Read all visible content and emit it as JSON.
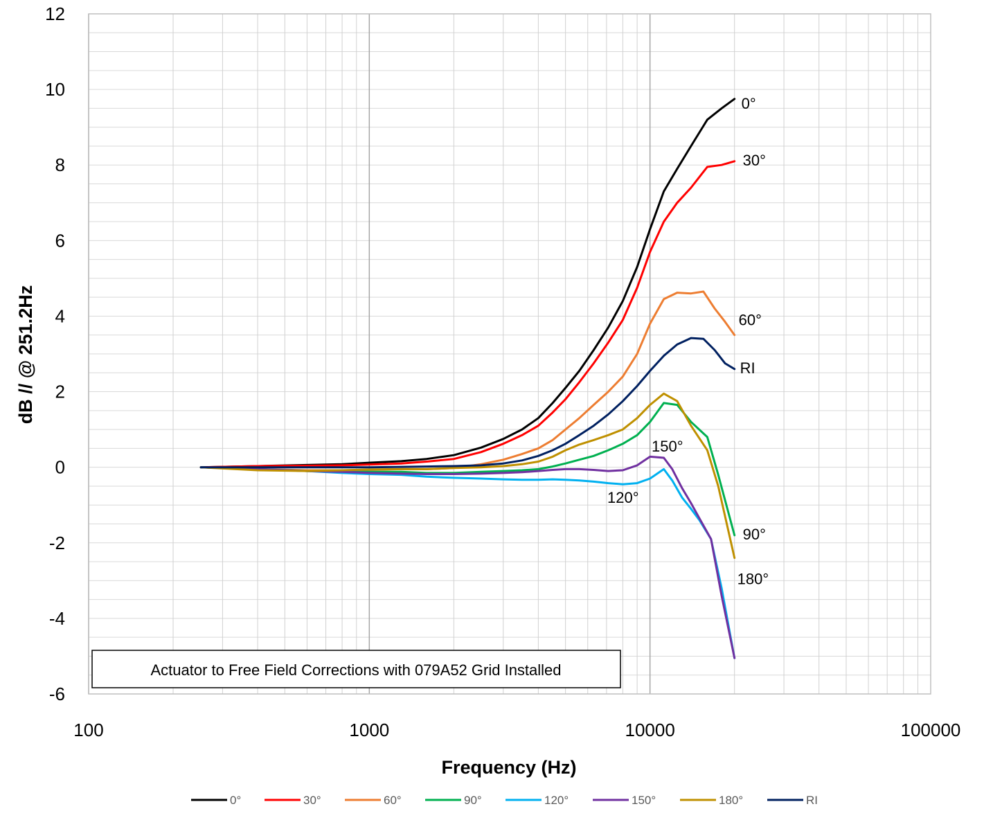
{
  "chart_data": {
    "type": "line",
    "title": "",
    "annotation": "Actuator to Free Field Corrections with 079A52 Grid Installed",
    "xlabel": "Frequency (Hz)",
    "ylabel": "dB // @ 251.2Hz",
    "xscale": "log",
    "xlim": [
      100,
      100000
    ],
    "ylim": [
      -6,
      12
    ],
    "xticks": [
      "100",
      "1000",
      "10000",
      "100000"
    ],
    "yticks": [
      "-6",
      "-4",
      "-2",
      "0",
      "2",
      "4",
      "6",
      "8",
      "10",
      "12"
    ],
    "grid": true,
    "legend_position": "bottom",
    "series": [
      {
        "name": "0°",
        "color": "#000000",
        "end_label": "0°",
        "points": [
          [
            251.2,
            0
          ],
          [
            400,
            0.03
          ],
          [
            600,
            0.06
          ],
          [
            800,
            0.08
          ],
          [
            1000,
            0.12
          ],
          [
            1300,
            0.16
          ],
          [
            1600,
            0.22
          ],
          [
            2000,
            0.32
          ],
          [
            2500,
            0.52
          ],
          [
            3000,
            0.75
          ],
          [
            3500,
            1.0
          ],
          [
            4000,
            1.3
          ],
          [
            4500,
            1.7
          ],
          [
            5000,
            2.1
          ],
          [
            5600,
            2.55
          ],
          [
            6300,
            3.1
          ],
          [
            7100,
            3.7
          ],
          [
            8000,
            4.4
          ],
          [
            9000,
            5.3
          ],
          [
            10000,
            6.3
          ],
          [
            11200,
            7.3
          ],
          [
            12500,
            7.9
          ],
          [
            14000,
            8.5
          ],
          [
            16000,
            9.2
          ],
          [
            18000,
            9.5
          ],
          [
            20000,
            9.75
          ]
        ]
      },
      {
        "name": "30°",
        "color": "#ff0000",
        "end_label": "30°",
        "points": [
          [
            251.2,
            0
          ],
          [
            400,
            0.03
          ],
          [
            600,
            0.04
          ],
          [
            800,
            0.05
          ],
          [
            1000,
            0.07
          ],
          [
            1300,
            0.1
          ],
          [
            1600,
            0.15
          ],
          [
            2000,
            0.22
          ],
          [
            2500,
            0.4
          ],
          [
            3000,
            0.62
          ],
          [
            3500,
            0.85
          ],
          [
            4000,
            1.1
          ],
          [
            4500,
            1.45
          ],
          [
            5000,
            1.8
          ],
          [
            5600,
            2.25
          ],
          [
            6300,
            2.75
          ],
          [
            7100,
            3.3
          ],
          [
            8000,
            3.9
          ],
          [
            9000,
            4.75
          ],
          [
            10000,
            5.7
          ],
          [
            11200,
            6.5
          ],
          [
            12500,
            7.0
          ],
          [
            14000,
            7.4
          ],
          [
            16000,
            7.95
          ],
          [
            18000,
            8.0
          ],
          [
            20000,
            8.1
          ]
        ]
      },
      {
        "name": "60°",
        "color": "#ed7d31",
        "end_label": "60°",
        "points": [
          [
            251.2,
            0
          ],
          [
            400,
            -0.05
          ],
          [
            600,
            -0.08
          ],
          [
            800,
            -0.08
          ],
          [
            1000,
            -0.07
          ],
          [
            1300,
            -0.05
          ],
          [
            1600,
            -0.05
          ],
          [
            2000,
            -0.02
          ],
          [
            2500,
            0.08
          ],
          [
            3000,
            0.2
          ],
          [
            3500,
            0.35
          ],
          [
            4000,
            0.5
          ],
          [
            4500,
            0.72
          ],
          [
            5000,
            1.0
          ],
          [
            5600,
            1.3
          ],
          [
            6300,
            1.65
          ],
          [
            7100,
            2.0
          ],
          [
            8000,
            2.4
          ],
          [
            9000,
            3.0
          ],
          [
            10000,
            3.8
          ],
          [
            11200,
            4.45
          ],
          [
            12500,
            4.62
          ],
          [
            14000,
            4.6
          ],
          [
            15500,
            4.65
          ],
          [
            17000,
            4.2
          ],
          [
            18500,
            3.85
          ],
          [
            20000,
            3.5
          ]
        ]
      },
      {
        "name": "90°",
        "color": "#00b050",
        "end_label": "90°",
        "points": [
          [
            251.2,
            0
          ],
          [
            400,
            -0.05
          ],
          [
            600,
            -0.1
          ],
          [
            800,
            -0.12
          ],
          [
            1000,
            -0.12
          ],
          [
            1300,
            -0.12
          ],
          [
            1600,
            -0.15
          ],
          [
            2000,
            -0.15
          ],
          [
            2500,
            -0.12
          ],
          [
            3000,
            -0.1
          ],
          [
            3500,
            -0.08
          ],
          [
            4000,
            -0.05
          ],
          [
            4500,
            0.02
          ],
          [
            5000,
            0.1
          ],
          [
            5600,
            0.2
          ],
          [
            6300,
            0.3
          ],
          [
            7100,
            0.45
          ],
          [
            8000,
            0.62
          ],
          [
            9000,
            0.85
          ],
          [
            10000,
            1.2
          ],
          [
            11200,
            1.7
          ],
          [
            12500,
            1.65
          ],
          [
            14000,
            1.2
          ],
          [
            16000,
            0.8
          ],
          [
            17500,
            -0.2
          ],
          [
            20000,
            -1.8
          ]
        ]
      },
      {
        "name": "120°",
        "color": "#00b0f0",
        "end_label": "",
        "points": [
          [
            251.2,
            0
          ],
          [
            400,
            -0.05
          ],
          [
            600,
            -0.1
          ],
          [
            800,
            -0.15
          ],
          [
            1000,
            -0.18
          ],
          [
            1300,
            -0.2
          ],
          [
            1600,
            -0.25
          ],
          [
            2000,
            -0.28
          ],
          [
            2500,
            -0.3
          ],
          [
            3000,
            -0.32
          ],
          [
            3500,
            -0.33
          ],
          [
            4000,
            -0.33
          ],
          [
            4500,
            -0.32
          ],
          [
            5000,
            -0.33
          ],
          [
            5600,
            -0.35
          ],
          [
            6300,
            -0.38
          ],
          [
            7100,
            -0.42
          ],
          [
            8000,
            -0.45
          ],
          [
            9000,
            -0.42
          ],
          [
            10000,
            -0.3
          ],
          [
            11200,
            -0.05
          ],
          [
            12000,
            -0.35
          ],
          [
            13000,
            -0.8
          ],
          [
            14000,
            -1.1
          ],
          [
            15000,
            -1.4
          ],
          [
            16500,
            -1.9
          ],
          [
            18000,
            -3.2
          ],
          [
            20000,
            -5.05
          ]
        ]
      },
      {
        "name": "150°",
        "color": "#7030a0",
        "end_label": "",
        "points": [
          [
            251.2,
            0
          ],
          [
            400,
            -0.05
          ],
          [
            600,
            -0.1
          ],
          [
            800,
            -0.12
          ],
          [
            1000,
            -0.15
          ],
          [
            1300,
            -0.17
          ],
          [
            1600,
            -0.18
          ],
          [
            2000,
            -0.18
          ],
          [
            2500,
            -0.17
          ],
          [
            3000,
            -0.15
          ],
          [
            3500,
            -0.13
          ],
          [
            4000,
            -0.1
          ],
          [
            4500,
            -0.07
          ],
          [
            5000,
            -0.05
          ],
          [
            5600,
            -0.05
          ],
          [
            6300,
            -0.07
          ],
          [
            7100,
            -0.1
          ],
          [
            8000,
            -0.08
          ],
          [
            9000,
            0.05
          ],
          [
            10000,
            0.28
          ],
          [
            11200,
            0.25
          ],
          [
            12000,
            -0.05
          ],
          [
            13000,
            -0.55
          ],
          [
            14000,
            -0.95
          ],
          [
            15000,
            -1.35
          ],
          [
            16500,
            -1.9
          ],
          [
            18000,
            -3.4
          ],
          [
            20000,
            -5.05
          ]
        ]
      },
      {
        "name": "180°",
        "color": "#bf9000",
        "end_label": "180°",
        "points": [
          [
            251.2,
            0
          ],
          [
            400,
            -0.08
          ],
          [
            600,
            -0.1
          ],
          [
            800,
            -0.08
          ],
          [
            1000,
            -0.06
          ],
          [
            1300,
            -0.05
          ],
          [
            1600,
            -0.05
          ],
          [
            2000,
            -0.02
          ],
          [
            2500,
            0.0
          ],
          [
            3000,
            0.03
          ],
          [
            3500,
            0.08
          ],
          [
            4000,
            0.15
          ],
          [
            4500,
            0.28
          ],
          [
            5000,
            0.45
          ],
          [
            5600,
            0.6
          ],
          [
            6300,
            0.72
          ],
          [
            7100,
            0.85
          ],
          [
            8000,
            1.0
          ],
          [
            9000,
            1.3
          ],
          [
            10000,
            1.65
          ],
          [
            11200,
            1.95
          ],
          [
            12500,
            1.75
          ],
          [
            14000,
            1.1
          ],
          [
            16000,
            0.45
          ],
          [
            17500,
            -0.5
          ],
          [
            20000,
            -2.4
          ]
        ]
      },
      {
        "name": "RI",
        "color": "#002060",
        "end_label": "RI",
        "points": [
          [
            251.2,
            0
          ],
          [
            400,
            0.0
          ],
          [
            600,
            0.0
          ],
          [
            800,
            0.0
          ],
          [
            1000,
            0.0
          ],
          [
            1300,
            0.01
          ],
          [
            1600,
            0.02
          ],
          [
            2000,
            0.03
          ],
          [
            2500,
            0.05
          ],
          [
            3000,
            0.1
          ],
          [
            3500,
            0.18
          ],
          [
            4000,
            0.3
          ],
          [
            4500,
            0.45
          ],
          [
            5000,
            0.62
          ],
          [
            5600,
            0.85
          ],
          [
            6300,
            1.1
          ],
          [
            7100,
            1.4
          ],
          [
            8000,
            1.75
          ],
          [
            9000,
            2.15
          ],
          [
            10000,
            2.55
          ],
          [
            11200,
            2.95
          ],
          [
            12500,
            3.25
          ],
          [
            14000,
            3.42
          ],
          [
            15500,
            3.4
          ],
          [
            17000,
            3.1
          ],
          [
            18500,
            2.75
          ],
          [
            20000,
            2.6
          ]
        ]
      }
    ],
    "inline_labels": [
      "150°",
      "120°"
    ]
  }
}
